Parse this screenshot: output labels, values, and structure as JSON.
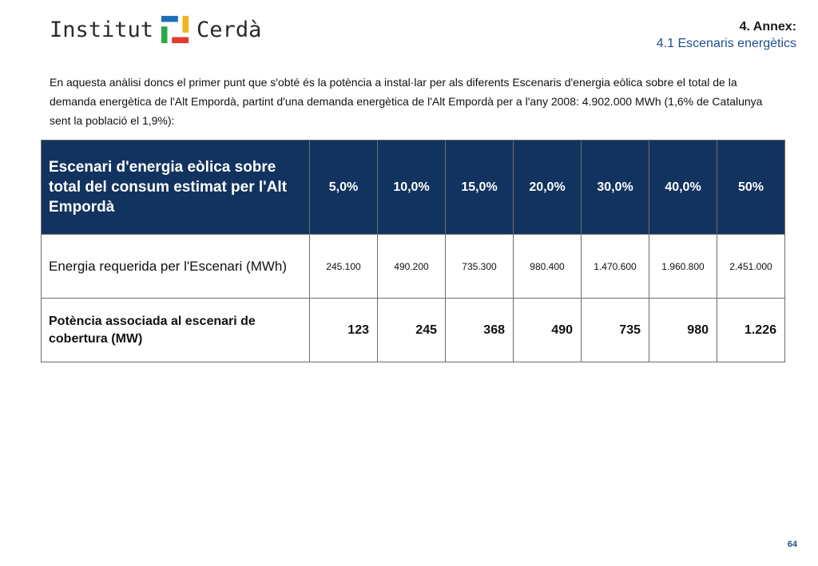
{
  "header": {
    "logo_left": "Institut",
    "logo_right": "Cerdà",
    "section": "4. Annex:",
    "subsection": "4.1 Escenaris energètics"
  },
  "intro": "En aquesta anàlisi doncs el primer punt que s'obté és la potència a instal·lar per als diferents Escenaris d'energia eòlica sobre el total de la demanda energètica de l'Alt Empordà, partint d'una demanda energètica de l'Alt Empordà per a l'any 2008: 4.902.000 MWh (1,6% de Catalunya sent la població el 1,9%):",
  "table": {
    "header_label": "Escenari d'energia eòlica sobre total del consum estimat per l'Alt Empordà",
    "percentages": [
      "5,0%",
      "10,0%",
      "15,0%",
      "20,0%",
      "30,0%",
      "40,0%",
      "50%"
    ],
    "energy_label": "Energia requerida per l'Escenari (MWh)",
    "energy_values": [
      "245.100",
      "490.200",
      "735.300",
      "980.400",
      "1.470.600",
      "1.960.800",
      "2.451.000"
    ],
    "power_label": "Potència associada al escenari de cobertura (MW)",
    "power_values": [
      "123",
      "245",
      "368",
      "490",
      "735",
      "980",
      "1.226"
    ]
  },
  "page_number": "64",
  "colors": {
    "header_bg": "#12335f",
    "accent_blue": "#1f4e8c",
    "logo_blue": "#1f6fb8",
    "logo_yellow": "#f2b21b",
    "logo_red": "#e23a2e",
    "logo_green": "#2aa84a"
  }
}
